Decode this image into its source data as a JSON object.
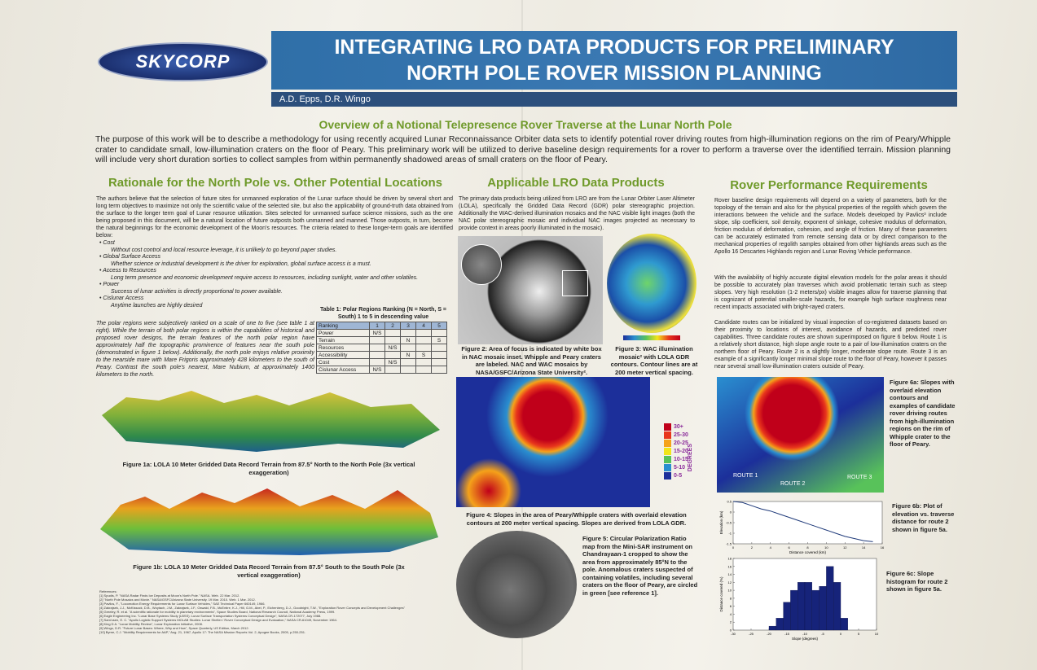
{
  "logo": "SKYCORP",
  "header": {
    "title_line1": "INTEGRATING LRO DATA PRODUCTS FOR PRELIMINARY",
    "title_line2": "NORTH POLE ROVER MISSION PLANNING",
    "authors": "A.D. Epps, D.R. Wingo"
  },
  "overview": {
    "heading": "Overview of a Notional Telepresence Rover Traverse at the Lunar North Pole",
    "text": "The purpose of this work will be to describe a methodology for using recently acquired Lunar Reconnaissance Orbiter data sets to identify potential rover driving routes from high-illumination regions on the rim of Peary/Whipple crater to candidate small, low-illumination craters on the floor of Peary. This preliminary work will be utilized to derive baseline design requirements for a rover to perform a traverse over the identified terrain. Mission planning will include very short duration sorties to collect samples from within permanently shadowed areas of small craters on the floor of Peary."
  },
  "rationale": {
    "heading": "Rationale for the North Pole vs. Other Potential Locations",
    "intro": "The authors believe that the selection of future sites for unmanned exploration of the Lunar surface should be driven by several short and long term objectives to maximize not only the scientific value of the selected site, but also the applicability of ground-truth data obtained from the surface to the longer term goal of Lunar resource utilization. Sites selected for unmanned surface science missions, such as the one being proposed in this document, will be a natural location of future outposts both unmanned and manned. Those outposts, in turn, become the natural beginnings for the economic development of the Moon's resources. The criteria related to these longer-term goals are identified below:",
    "items": [
      {
        "title": "Cost",
        "text": "Without cost control and local resource leverage, it is unlikely to go beyond paper studies."
      },
      {
        "title": "Global Surface Access",
        "text": "Whether science or industrial development is the driver for exploration, global surface access is a must."
      },
      {
        "title": "Access to Resources",
        "text": "Long term presence and economic development require access to resources, including sunlight, water and other volatiles."
      },
      {
        "title": "Power",
        "text": "Success of lunar activities is directly proportional to power available."
      },
      {
        "title": "Cislunar Access",
        "text": "Anytime launches are highly desired"
      }
    ],
    "ranking_text": "The polar regions were subjectively ranked on a scale of one to five (see table 1 at right). While the terrain of both polar regions is within the capabilities of historical and proposed rover designs, the terrain features of the north polar region have approximately half the topographic prominence of features near the south pole (demonstrated in figure 1 below). Additionally, the north pole enjoys relative proximity to the nearside mare with Mare Frigoris approximately 428 kilometers to the south of Peary. Contrast the south pole's nearest, Mare Nubium, at approximately 1400 kilometers to the north.",
    "table": {
      "caption": "Table 1: Polar Regions Ranking (N = North, S = South) 1 to 5 in descending value",
      "header": [
        "Ranking",
        "1",
        "2",
        "3",
        "4",
        "5"
      ],
      "rows": [
        [
          "Power",
          "N/S",
          null,
          null,
          null,
          null
        ],
        [
          "Terrain",
          null,
          null,
          "N",
          null,
          "S"
        ],
        [
          "Resources",
          null,
          "N/S",
          null,
          null,
          null
        ],
        [
          "Accessibility",
          null,
          null,
          "N",
          "S",
          null
        ],
        [
          "Cost",
          null,
          "N/S",
          null,
          null,
          null
        ],
        [
          "Cislunar Access",
          "N/S",
          null,
          null,
          null,
          null
        ]
      ]
    },
    "figure1a": "Figure 1a: LOLA 10 Meter Gridded Data Record Terrain from 87.5° North to the North Pole (3x vertical exaggeration)",
    "figure1b": "Figure 1b: LOLA 10 Meter Gridded Data Record Terrain from 87.5° South to the South Pole (3x vertical exaggeration)"
  },
  "references": {
    "heading": "References:",
    "items": [
      "[1] Spudis, P. \"NASA Radar Finds Ice Deposits at Moon's North Pole.\" NASA. Web. 22 Mar. 2012.",
      "[2] \"North Pole Mosaics and Movie.\" NASA/GSFC/Arizona State University. 19 Mar. 2010. Web. 1 Mar. 2012.",
      "[3] Pavlics, F., \"Locomotion Energy Requirements for Lunar Surface Vehicles,\" SAE Technical Paper 660149, 1966.",
      "[4] Zakrajsek, J.J., McKissock, D.B., Woytach, J.M., Zakrajsek, J.F., Oswald, F.B., McEntire, K.J., Hill, G.M., Abel, P., Eichenberg, D.J., Goodnight, T.W., \"Exploration Rover Concepts and Development Challenges\"",
      "[5] Greeley, R. et al. \"A scientific rationale for mobility in planetary environments\", Space Studies Board, National Research Council, National Academy Press, 1999.",
      "[6] Eagle Engineering Inc. \"Lunar Base Systems Study (LBSS): Lunar Surface Transportation Systems Conceptual Design\", NASA CR-172077, July 1988.",
      "[7] Sam'usen, E. C. \"Apollo Logistic Support Systems MOLAB Studies: Lunar Shelter / Rover Conceptual Design and Evaluation,\" NASA CR-61049, November 1964.",
      "[8] King D A. \"Lunar Mobility Review\", Lunar Exploration Initiative, 2008.",
      "[9] Wingo, D.R. \"Future Lunar Bases: Where, Why and How\", Space Quarterly, US Edition, March 2012.",
      "[10] Byrne, C.J. \"Mobility Requirements for AAP,\" Aug. 21, 1967, Apollo 17: The NASA Mission Reports Vol. 2, Apogee Books, 2005, p.250-251."
    ]
  },
  "lro": {
    "heading": "Applicable LRO Data Products",
    "text": "The primary data products being utilized from LRO are from the Lunar Orbiter Laser Altimeter (LOLA), specifically the Gridded Data Record (GDR) polar stereographic projection. Additionally the WAC-derived illumination mosaics and the NAC visible light images (both the NAC polar stereographic mosaic and individual NAC images projected as necessary to provide context in areas poorly illuminated in the mosaic).",
    "figure2": "Figure 2: Area of focus is indicated by white box in NAC mosaic inset. Whipple and Peary craters are labeled. NAC and WAC mosaics by NASA/GSFC/Arizona State University².",
    "figure3": "Figure 3: WAC illumination mosaic² with LOLA GDR contours. Contour lines are at 200 meter vertical spacing.",
    "figure4": "Figure 4: Slopes in the area of Peary/Whipple craters with overlaid elevation contours at 200 meter vertical spacing. Slopes are derived from LOLA GDR.",
    "figure5": "Figure 5: Circular Polarization Ratio map from the Mini-SAR instrument on Chandrayaan-1 cropped to show the area from approximately 85°N to the pole. Anomalous craters suspected of containing volatiles, including several craters on the floor of Peary, are circled in green [see reference 1].",
    "legend": {
      "title": "DEGREES",
      "labels": [
        "30+",
        "25-30",
        "20-25",
        "15-20",
        "10-15",
        "5-10",
        "0-5"
      ],
      "colors": [
        "#c0001a",
        "#e8361c",
        "#f5a21a",
        "#f2e51a",
        "#58c25a",
        "#2a8fd0",
        "#1c2f9a"
      ]
    }
  },
  "rover": {
    "heading": "Rover Performance Requirements",
    "paragraphs": [
      "Rover baseline design requirements will depend on a variety of parameters, both for the topology of the terrain and also for the physical properties of the regolith which govern the interactions between the vehicle and the surface. Models developed by Pavlics³ include slope, slip coefficient, soil density, exponent of sinkage, cohesive modulus of deformation, friction modulus of deformation, cohesion, and angle of friction. Many of these parameters can be accurately estimated from remote sensing data or by direct comparison to the mechanical properties of regolith samples obtained from other highlands areas such as the Apollo 16 Descartes Highlands region and Lunar Roving Vehicle performance.",
      "With the availability of highly accurate digital elevation models for the polar areas it should be possible to accurately plan traverses which avoid problematic terrain such as steep slopes. Very high resolution (1-2 meters/px) visible images allow for traverse planning that is cognizant of potential smaller-scale hazards, for example high surface roughness near recent impacts associated with bright-rayed craters.",
      "Candidate routes can be initialized by visual inspection of co-registered datasets based on their proximity to locations of interest, avoidance of hazards, and predicted rover capabilities. Three candidate routes are shown superimposed on figure 6 below. Route 1 is a relatively short distance, high slope angle route to a pair of low-illumination craters on the northern floor of Peary. Route 2 is a slightly longer, moderate slope route. Route 3 is an example of a significantly longer minimal slope route to the floor of Peary, however it passes near several small low-illumination craters outside of Peary."
    ],
    "route_labels": [
      "ROUTE 1",
      "ROUTE 2",
      "ROUTE 3"
    ],
    "figure6a": "Figure 6a: Slopes with overlaid elevation contours and examples of candidate rover driving routes from high-illumination regions on the rim of Whipple crater to the floor of Peary.",
    "figure6b": {
      "caption": "Figure 6b: Plot of elevation vs. traverse distance for route 2 shown in figure 5a.",
      "xlabel": "Distance covered (km)",
      "ylabel": "Elevation (km)",
      "x": [
        0,
        1,
        2,
        3,
        4,
        5,
        6,
        7,
        8,
        9,
        10,
        11,
        12,
        13,
        14,
        15
      ],
      "y": [
        0.5,
        0.45,
        0.3,
        0.15,
        0.05,
        -0.1,
        -0.25,
        -0.4,
        -0.55,
        -0.7,
        -0.85,
        -1,
        -1.15,
        -1.25,
        -1.35,
        -1.4
      ],
      "xlim": [
        0,
        16
      ],
      "ylim": [
        -1.5,
        0.5
      ],
      "xticks": [
        0,
        2,
        4,
        6,
        8,
        10,
        12,
        14,
        16
      ],
      "yticks": [
        -1.5,
        -1,
        -0.5,
        0,
        0.5
      ],
      "color": "#1f3a7a"
    },
    "figure6c": {
      "caption": "Figure 6c: Slope histogram for route 2 shown in figure 5a.",
      "xlabel": "Slope (degrees)",
      "ylabel": "Distance covered (%)",
      "bins": [
        -20,
        -18,
        -16,
        -14,
        -12,
        -10,
        -8,
        -6,
        -4,
        -2,
        0,
        2
      ],
      "counts": [
        1,
        3,
        7,
        10,
        12,
        12,
        10,
        11,
        16,
        12,
        3
      ],
      "xlim": [
        -30,
        10
      ],
      "ylim": [
        0,
        18
      ],
      "xticks": [
        -30,
        -25,
        -20,
        -15,
        -10,
        -5,
        0,
        5,
        10
      ],
      "yticks": [
        0,
        2,
        4,
        6,
        8,
        10,
        12,
        14,
        16,
        18
      ],
      "color": "#16237a"
    }
  }
}
